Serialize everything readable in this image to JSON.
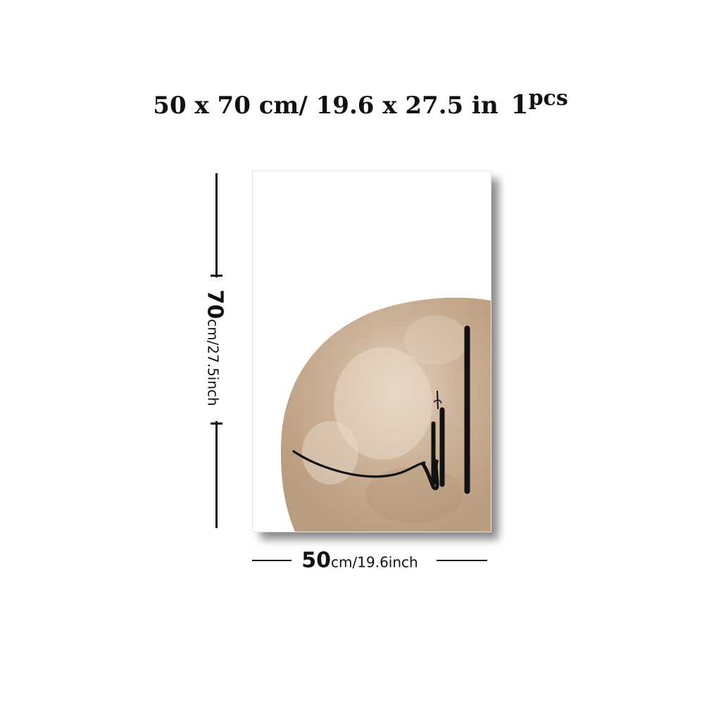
{
  "title": {
    "dims": "50 x 70 cm/ 19.6 x 27.5 in",
    "pcs_count": "1",
    "pcs_word": "pcs"
  },
  "height_label": {
    "value": "70",
    "unit": "cm/27.5inch"
  },
  "width_label": {
    "value": "50",
    "unit": "cm/19.6inch"
  },
  "artwork": {
    "subject": "arabic-calligraphy-on-beige-watercolor-circle",
    "colors": {
      "circle": "#c4a98c",
      "circle_light": "#e3d2bf",
      "ink": "#111111"
    }
  }
}
